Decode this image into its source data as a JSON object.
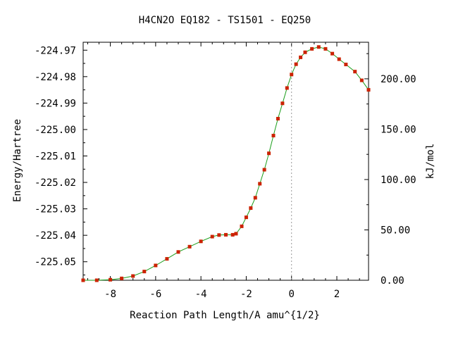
{
  "chart_data": {
    "type": "scatter",
    "title": "H4CN2O   EQ182 - TS1501 - EQ250",
    "xlabel": "Reaction Path Length/A amu^{1/2}",
    "ylabel": "Energy/Hartree",
    "y2label": "kJ/mol",
    "xlim": [
      -9.2,
      3.4
    ],
    "ylim": [
      -225.057,
      -224.967
    ],
    "y2lim": [
      0.0,
      236.3
    ],
    "x_ticks": [
      -8,
      -6,
      -4,
      -2,
      0,
      2
    ],
    "x_tick_labels": [
      "-8",
      "-6",
      "-4",
      "-2",
      "0",
      "2"
    ],
    "y_ticks": [
      -224.97,
      -224.98,
      -224.99,
      -225.0,
      -225.01,
      -225.02,
      -225.03,
      -225.04,
      -225.05
    ],
    "y_tick_labels": [
      "-224.97",
      "-224.98",
      "-224.99",
      "-225.00",
      "-225.01",
      "-225.02",
      "-225.03",
      "-225.04",
      "-225.05"
    ],
    "y2_ticks": [
      0,
      50,
      100,
      150,
      200
    ],
    "y2_tick_labels": [
      "0.00",
      "50.00",
      "100.00",
      "150.00",
      "200.00"
    ],
    "ts_x": 0.0,
    "line_color": "#1a9e1a",
    "marker_color": "#cc2200",
    "dash_color": "#999999",
    "grid": false,
    "series": [
      {
        "x": [
          -9.2,
          -8.6,
          -8.0,
          -7.5,
          -7.0,
          -6.5,
          -6.0,
          -5.5,
          -5.0,
          -4.5,
          -4.0,
          -3.5,
          -3.2,
          -2.9,
          -2.6,
          -2.45,
          -2.2,
          -2.0,
          -1.8,
          -1.6,
          -1.4,
          -1.2,
          -1.0,
          -0.8,
          -0.6,
          -0.4,
          -0.2,
          0.0,
          0.2,
          0.4,
          0.6,
          0.9,
          1.2,
          1.5,
          1.8,
          2.1,
          2.4,
          2.8,
          3.1,
          3.4
        ],
        "values": [
          -225.057,
          -225.057,
          -225.0568,
          -225.0563,
          -225.0554,
          -225.0537,
          -225.0514,
          -225.0489,
          -225.0463,
          -225.0443,
          -225.0423,
          -225.0405,
          -225.0399,
          -225.0398,
          -225.0398,
          -225.0394,
          -225.0366,
          -225.0332,
          -225.0297,
          -225.0258,
          -225.0205,
          -225.0152,
          -225.009,
          -225.0023,
          -224.9959,
          -224.9901,
          -224.9843,
          -224.9792,
          -224.9753,
          -224.9727,
          -224.9708,
          -224.9695,
          -224.9688,
          -224.9695,
          -224.9713,
          -224.9734,
          -224.9754,
          -224.9781,
          -224.9814,
          -224.985
        ]
      }
    ]
  }
}
